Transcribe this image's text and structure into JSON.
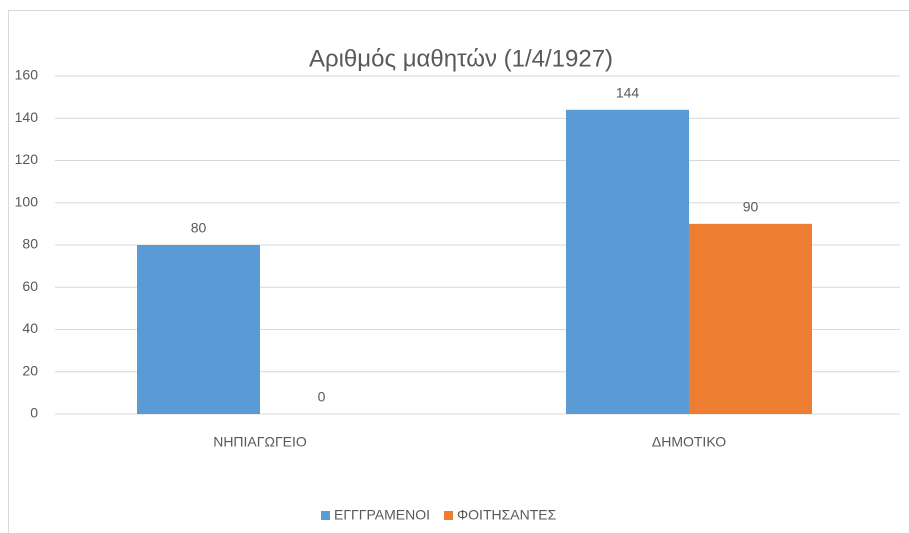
{
  "chart_data": {
    "type": "bar",
    "title": "Αριθμός μαθητών (1/4/1927)",
    "categories": [
      "ΝΗΠΙΑΓΩΓΕΙΟ",
      "ΔΗΜΟΤΙΚΟ"
    ],
    "series": [
      {
        "name": "ΕΓΓΓΡΑΜΕΝΟΙ",
        "color": "#5b9bd5",
        "values": [
          80,
          144
        ]
      },
      {
        "name": "ΦΟΙΤΗΣΑΝΤΕΣ",
        "color": "#ed7d31",
        "values": [
          0,
          90
        ]
      }
    ],
    "ylim": [
      0,
      160
    ],
    "yticks": [
      0,
      20,
      40,
      60,
      80,
      100,
      120,
      140,
      160
    ],
    "grid": true,
    "legend": "bottom"
  }
}
